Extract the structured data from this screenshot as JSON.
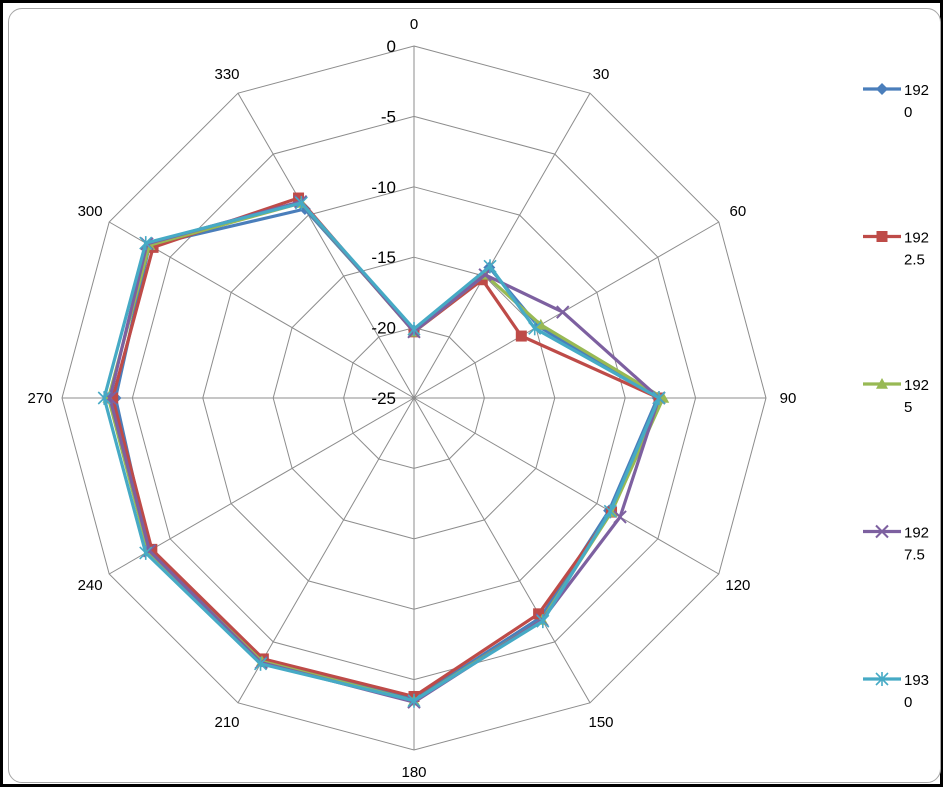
{
  "chart_data": {
    "type": "radar",
    "title": "",
    "angles": [
      "0",
      "30",
      "60",
      "90",
      "120",
      "150",
      "180",
      "210",
      "240",
      "270",
      "300",
      "330"
    ],
    "rlim": [
      -25,
      0
    ],
    "rticks": [
      0,
      -5,
      -10,
      -15,
      -20,
      -25
    ],
    "rtick_labels": [
      "0",
      "-5",
      "-10",
      "-15",
      "-20",
      "-25"
    ],
    "grid": true,
    "legend": "right",
    "series": [
      {
        "name": "1920",
        "legend_lines": [
          "192",
          "0"
        ],
        "color": "#4a7ebb",
        "marker": "diamond",
        "values": [
          -20.2,
          -14.3,
          -14.8,
          -7.7,
          -9.0,
          -7.0,
          -3.6,
          -3.4,
          -3.3,
          -3.8,
          -3.3,
          -9.5
        ]
      },
      {
        "name": "1922.5",
        "legend_lines": [
          "192",
          "2.5"
        ],
        "color": "#be4b48",
        "marker": "square",
        "values": [
          -20.3,
          -15.3,
          -16.2,
          -7.6,
          -8.8,
          -7.3,
          -3.8,
          -3.6,
          -3.5,
          -3.6,
          -3.6,
          -8.6
        ]
      },
      {
        "name": "1925",
        "legend_lines": [
          "192",
          "5"
        ],
        "color": "#98b954",
        "marker": "triangle",
        "values": [
          -20.3,
          -14.9,
          -14.6,
          -7.3,
          -8.8,
          -6.8,
          -3.5,
          -3.4,
          -3.2,
          -3.3,
          -3.3,
          -9.0
        ]
      },
      {
        "name": "1927.5",
        "legend_lines": [
          "192",
          "7.5"
        ],
        "color": "#7d60a0",
        "marker": "x",
        "values": [
          -20.3,
          -14.9,
          -12.8,
          -7.6,
          -8.1,
          -6.8,
          -3.4,
          -3.3,
          -3.3,
          -3.4,
          -3.1,
          -8.9
        ]
      },
      {
        "name": "1930",
        "legend_lines": [
          "193",
          "0"
        ],
        "color": "#46aac5",
        "marker": "star",
        "values": [
          -20.1,
          -14.2,
          -15.1,
          -7.6,
          -8.9,
          -6.7,
          -3.5,
          -3.2,
          -3.0,
          -3.0,
          -3.0,
          -9.0
        ]
      }
    ]
  }
}
